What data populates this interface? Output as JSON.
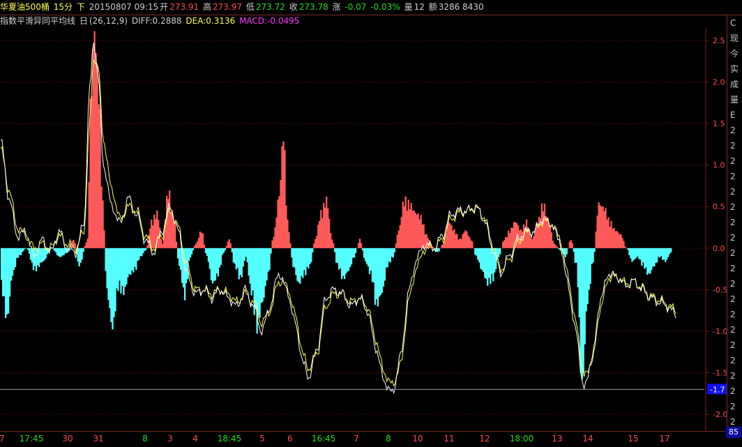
{
  "header": {
    "symbol": "华夏油500桶",
    "period": "15分",
    "flag": "下",
    "datetime": "20150807 09:15",
    "open_label": "开",
    "open": "273.91",
    "high_label": "高",
    "high": "273.97",
    "low_label": "低",
    "low": "273.72",
    "close_label": "收",
    "close": "273.78",
    "change_label": "涨",
    "change": "-0.07",
    "change_pct": "-0.03%",
    "volume_label": "量",
    "volume": "12",
    "amount_label": "额",
    "amount": "3286 8430"
  },
  "indicator": {
    "name": "指数平滑异同平均线",
    "period_label": "日",
    "params": "(26,12,9)",
    "diff": "DIFF:0.2888",
    "dea": "DEA:0.3136",
    "macd": "MACD:-0.0495"
  },
  "right_panel": [
    "C",
    "现",
    "今",
    "实",
    "成",
    "量",
    "E",
    "2",
    "2",
    "2",
    "2",
    "2",
    "2",
    "2",
    "2",
    "2",
    "2",
    "2",
    "2",
    "2",
    "2",
    "2",
    "2",
    "2",
    "2",
    "2",
    "2"
  ],
  "corner_value": "85",
  "current_value_tag": "-1.7",
  "colors": {
    "positive_bar": "#ff5a5a",
    "negative_bar": "#55ffff",
    "diff_line": "#ffffff",
    "dea_line": "#ffff44",
    "grid": "#8a1a1a",
    "axis_text": "#ff4a4a",
    "time_text": "#22dd22",
    "tag_bg": "#1010ee"
  },
  "chart_data": {
    "type": "bar",
    "ylim": [
      -2.2,
      2.65
    ],
    "yticks": [
      "2.5",
      "2.0",
      "1.5",
      "1.0",
      "0.5",
      "0.0",
      "-0.5",
      "-1.0",
      "-1.5",
      "-2.0"
    ],
    "reference_level": -1.7,
    "xticks": [
      {
        "label": "7",
        "x": 3,
        "kind": "day"
      },
      {
        "label": "17:45",
        "x": 45,
        "kind": "time"
      },
      {
        "label": "30",
        "x": 97,
        "kind": "day"
      },
      {
        "label": "31",
        "x": 141,
        "kind": "day"
      },
      {
        "label": "8",
        "x": 208,
        "kind": "time"
      },
      {
        "label": "3",
        "x": 244,
        "kind": "day"
      },
      {
        "label": "4",
        "x": 280,
        "kind": "day"
      },
      {
        "label": "18:45",
        "x": 329,
        "kind": "time"
      },
      {
        "label": "5",
        "x": 376,
        "kind": "day"
      },
      {
        "label": "6",
        "x": 416,
        "kind": "day"
      },
      {
        "label": "16:45",
        "x": 464,
        "kind": "time"
      },
      {
        "label": "7",
        "x": 511,
        "kind": "day"
      },
      {
        "label": "8",
        "x": 557,
        "kind": "time"
      },
      {
        "label": "10",
        "x": 599,
        "kind": "day"
      },
      {
        "label": "11",
        "x": 644,
        "kind": "day"
      },
      {
        "label": "12",
        "x": 695,
        "kind": "day"
      },
      {
        "label": "18:00",
        "x": 748,
        "kind": "time"
      },
      {
        "label": "13",
        "x": 799,
        "kind": "day"
      },
      {
        "label": "14",
        "x": 843,
        "kind": "day"
      },
      {
        "label": "15",
        "x": 908,
        "kind": "day"
      },
      {
        "label": "17",
        "x": 953,
        "kind": "day"
      }
    ],
    "n_bars": 488,
    "macd_keypoints": [
      [
        0,
        -0.45
      ],
      [
        4,
        -0.8
      ],
      [
        8,
        -0.3
      ],
      [
        12,
        -0.1
      ],
      [
        18,
        0.0
      ],
      [
        24,
        -0.25
      ],
      [
        30,
        -0.15
      ],
      [
        36,
        0.0
      ],
      [
        42,
        -0.1
      ],
      [
        48,
        -0.05
      ],
      [
        52,
        0.1
      ],
      [
        56,
        -0.2
      ],
      [
        62,
        0.1
      ],
      [
        64,
        1.6
      ],
      [
        67,
        2.45
      ],
      [
        70,
        1.8
      ],
      [
        73,
        0.5
      ],
      [
        76,
        -0.5
      ],
      [
        80,
        -0.9
      ],
      [
        84,
        -0.45
      ],
      [
        88,
        -0.5
      ],
      [
        92,
        -0.3
      ],
      [
        96,
        -0.25
      ],
      [
        100,
        -0.1
      ],
      [
        104,
        -0.02
      ],
      [
        108,
        0.3
      ],
      [
        112,
        0.4
      ],
      [
        116,
        0.05
      ],
      [
        120,
        0.65
      ],
      [
        124,
        0.35
      ],
      [
        128,
        -0.2
      ],
      [
        132,
        -0.55
      ],
      [
        136,
        -0.1
      ],
      [
        140,
        0.05
      ],
      [
        144,
        0.2
      ],
      [
        148,
        -0.1
      ],
      [
        152,
        -0.4
      ],
      [
        156,
        -0.3
      ],
      [
        160,
        -0.05
      ],
      [
        164,
        0.1
      ],
      [
        168,
        -0.2
      ],
      [
        172,
        -0.35
      ],
      [
        176,
        -0.1
      ],
      [
        180,
        -0.5
      ],
      [
        184,
        -0.9
      ],
      [
        188,
        -0.6
      ],
      [
        192,
        -0.3
      ],
      [
        196,
        0.15
      ],
      [
        200,
        0.6
      ],
      [
        203,
        1.3
      ],
      [
        206,
        0.3
      ],
      [
        210,
        -0.2
      ],
      [
        214,
        -0.4
      ],
      [
        218,
        -0.3
      ],
      [
        222,
        -0.2
      ],
      [
        226,
        0.1
      ],
      [
        230,
        0.4
      ],
      [
        234,
        0.55
      ],
      [
        238,
        0.1
      ],
      [
        242,
        -0.2
      ],
      [
        246,
        -0.35
      ],
      [
        250,
        -0.25
      ],
      [
        254,
        -0.1
      ],
      [
        258,
        0.1
      ],
      [
        262,
        -0.15
      ],
      [
        266,
        -0.3
      ],
      [
        270,
        -0.65
      ],
      [
        274,
        -0.5
      ],
      [
        278,
        -0.2
      ],
      [
        282,
        -0.1
      ],
      [
        286,
        0.2
      ],
      [
        290,
        0.55
      ],
      [
        294,
        0.5
      ],
      [
        298,
        0.4
      ],
      [
        302,
        0.35
      ],
      [
        306,
        0.15
      ],
      [
        310,
        0.02
      ],
      [
        314,
        -0.05
      ],
      [
        318,
        0.05
      ],
      [
        322,
        0.3
      ],
      [
        326,
        0.2
      ],
      [
        330,
        0.1
      ],
      [
        334,
        0.2
      ],
      [
        338,
        0.1
      ],
      [
        342,
        -0.1
      ],
      [
        346,
        -0.25
      ],
      [
        350,
        -0.4
      ],
      [
        354,
        -0.35
      ],
      [
        358,
        -0.1
      ],
      [
        362,
        0.1
      ],
      [
        366,
        0.2
      ],
      [
        370,
        0.3
      ],
      [
        374,
        0.2
      ],
      [
        378,
        0.3
      ],
      [
        382,
        0.1
      ],
      [
        386,
        0.3
      ],
      [
        390,
        0.5
      ],
      [
        394,
        0.3
      ],
      [
        398,
        0.05
      ],
      [
        402,
        -0.02
      ],
      [
        406,
        -0.1
      ],
      [
        410,
        0.1
      ],
      [
        414,
        -0.2
      ],
      [
        418,
        -1.55
      ],
      [
        422,
        -0.6
      ],
      [
        426,
        -0.15
      ],
      [
        430,
        0.5
      ],
      [
        434,
        0.45
      ],
      [
        438,
        0.3
      ],
      [
        442,
        0.2
      ],
      [
        446,
        0.15
      ],
      [
        450,
        0.0
      ],
      [
        454,
        -0.15
      ],
      [
        458,
        -0.1
      ],
      [
        462,
        -0.2
      ],
      [
        466,
        -0.3
      ],
      [
        470,
        -0.2
      ],
      [
        474,
        -0.1
      ],
      [
        478,
        -0.15
      ],
      [
        482,
        -0.05
      ]
    ],
    "diff_series_points": [
      [
        0,
        1.3
      ],
      [
        6,
        0.6
      ],
      [
        12,
        0.15
      ],
      [
        18,
        0.2
      ],
      [
        24,
        -0.1
      ],
      [
        30,
        0.1
      ],
      [
        36,
        -0.05
      ],
      [
        42,
        0.2
      ],
      [
        48,
        0.0
      ],
      [
        54,
        -0.05
      ],
      [
        60,
        0.3
      ],
      [
        64,
        1.9
      ],
      [
        67,
        2.5
      ],
      [
        70,
        2.1
      ],
      [
        74,
        1.0
      ],
      [
        80,
        0.5
      ],
      [
        86,
        0.3
      ],
      [
        92,
        0.6
      ],
      [
        98,
        0.4
      ],
      [
        104,
        0.1
      ],
      [
        110,
        -0.05
      ],
      [
        116,
        0.2
      ],
      [
        122,
        0.5
      ],
      [
        128,
        0.2
      ],
      [
        134,
        -0.3
      ],
      [
        140,
        -0.55
      ],
      [
        146,
        -0.5
      ],
      [
        152,
        -0.6
      ],
      [
        158,
        -0.5
      ],
      [
        164,
        -0.6
      ],
      [
        170,
        -0.7
      ],
      [
        176,
        -0.5
      ],
      [
        182,
        -0.7
      ],
      [
        188,
        -1.0
      ],
      [
        194,
        -0.7
      ],
      [
        200,
        -0.3
      ],
      [
        206,
        -0.5
      ],
      [
        212,
        -0.9
      ],
      [
        218,
        -1.4
      ],
      [
        222,
        -1.55
      ],
      [
        228,
        -1.2
      ],
      [
        234,
        -0.6
      ],
      [
        240,
        -0.5
      ],
      [
        246,
        -0.55
      ],
      [
        252,
        -0.7
      ],
      [
        258,
        -0.6
      ],
      [
        264,
        -0.75
      ],
      [
        270,
        -1.2
      ],
      [
        276,
        -1.6
      ],
      [
        282,
        -1.75
      ],
      [
        288,
        -1.3
      ],
      [
        294,
        -0.5
      ],
      [
        300,
        -0.1
      ],
      [
        306,
        0.05
      ],
      [
        312,
        0.0
      ],
      [
        318,
        0.15
      ],
      [
        324,
        0.4
      ],
      [
        330,
        0.45
      ],
      [
        336,
        0.45
      ],
      [
        342,
        0.5
      ],
      [
        348,
        0.35
      ],
      [
        354,
        0.0
      ],
      [
        360,
        -0.3
      ],
      [
        366,
        -0.1
      ],
      [
        372,
        0.1
      ],
      [
        378,
        0.2
      ],
      [
        384,
        0.2
      ],
      [
        390,
        0.35
      ],
      [
        396,
        0.3
      ],
      [
        402,
        0.1
      ],
      [
        408,
        -0.4
      ],
      [
        414,
        -1.0
      ],
      [
        420,
        -1.7
      ],
      [
        426,
        -1.3
      ],
      [
        432,
        -0.6
      ],
      [
        438,
        -0.3
      ],
      [
        444,
        -0.35
      ],
      [
        450,
        -0.45
      ],
      [
        456,
        -0.4
      ],
      [
        462,
        -0.5
      ],
      [
        468,
        -0.6
      ],
      [
        474,
        -0.65
      ],
      [
        480,
        -0.7
      ],
      [
        486,
        -0.8
      ]
    ],
    "dea_series_points": [
      [
        0,
        1.2
      ],
      [
        6,
        0.7
      ],
      [
        12,
        0.25
      ],
      [
        18,
        0.15
      ],
      [
        24,
        0.0
      ],
      [
        30,
        0.05
      ],
      [
        36,
        0.0
      ],
      [
        42,
        0.15
      ],
      [
        48,
        0.05
      ],
      [
        54,
        0.0
      ],
      [
        60,
        0.2
      ],
      [
        64,
        1.5
      ],
      [
        67,
        2.3
      ],
      [
        70,
        2.2
      ],
      [
        74,
        1.3
      ],
      [
        80,
        0.7
      ],
      [
        86,
        0.35
      ],
      [
        92,
        0.5
      ],
      [
        98,
        0.45
      ],
      [
        104,
        0.15
      ],
      [
        110,
        0.0
      ],
      [
        116,
        0.15
      ],
      [
        122,
        0.45
      ],
      [
        128,
        0.25
      ],
      [
        134,
        -0.2
      ],
      [
        140,
        -0.5
      ],
      [
        146,
        -0.5
      ],
      [
        152,
        -0.55
      ],
      [
        158,
        -0.5
      ],
      [
        164,
        -0.55
      ],
      [
        170,
        -0.65
      ],
      [
        176,
        -0.55
      ],
      [
        182,
        -0.65
      ],
      [
        188,
        -0.9
      ],
      [
        194,
        -0.75
      ],
      [
        200,
        -0.4
      ],
      [
        206,
        -0.45
      ],
      [
        212,
        -0.8
      ],
      [
        218,
        -1.3
      ],
      [
        222,
        -1.45
      ],
      [
        228,
        -1.25
      ],
      [
        234,
        -0.7
      ],
      [
        240,
        -0.55
      ],
      [
        246,
        -0.55
      ],
      [
        252,
        -0.65
      ],
      [
        258,
        -0.6
      ],
      [
        264,
        -0.7
      ],
      [
        270,
        -1.1
      ],
      [
        276,
        -1.5
      ],
      [
        282,
        -1.65
      ],
      [
        288,
        -1.4
      ],
      [
        294,
        -0.6
      ],
      [
        300,
        -0.2
      ],
      [
        306,
        0.0
      ],
      [
        312,
        0.0
      ],
      [
        318,
        0.1
      ],
      [
        324,
        0.35
      ],
      [
        330,
        0.42
      ],
      [
        336,
        0.45
      ],
      [
        342,
        0.48
      ],
      [
        348,
        0.38
      ],
      [
        354,
        0.05
      ],
      [
        360,
        -0.25
      ],
      [
        366,
        -0.15
      ],
      [
        372,
        0.05
      ],
      [
        378,
        0.18
      ],
      [
        384,
        0.2
      ],
      [
        390,
        0.32
      ],
      [
        396,
        0.3
      ],
      [
        402,
        0.15
      ],
      [
        408,
        -0.3
      ],
      [
        414,
        -0.9
      ],
      [
        420,
        -1.55
      ],
      [
        426,
        -1.35
      ],
      [
        432,
        -0.7
      ],
      [
        438,
        -0.35
      ],
      [
        444,
        -0.35
      ],
      [
        450,
        -0.42
      ],
      [
        456,
        -0.4
      ],
      [
        462,
        -0.48
      ],
      [
        468,
        -0.58
      ],
      [
        474,
        -0.62
      ],
      [
        480,
        -0.68
      ],
      [
        486,
        -0.75
      ]
    ]
  }
}
